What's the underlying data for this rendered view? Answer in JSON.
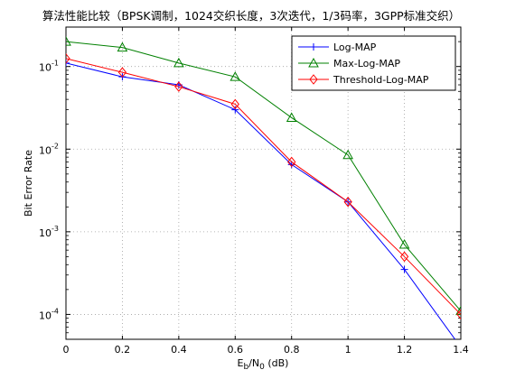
{
  "chart_data": {
    "type": "line",
    "title": "算法性能比较（BPSK调制，1024交织长度，3次迭代，1/3码率，3GPP标准交织）",
    "xlabel": {
      "main": "E",
      "sub1": "b",
      "mid": "/N",
      "sub2": "0",
      "tail": " (dB)"
    },
    "ylabel": "Bit Error Rate",
    "x_scale": "linear",
    "y_scale": "log",
    "xlim": [
      0,
      1.4
    ],
    "ylim": [
      5e-05,
      0.3
    ],
    "grid": true,
    "legend_position": "top-right",
    "x_ticks": [
      "0",
      "0.2",
      "0.4",
      "0.6",
      "0.8",
      "1",
      "1.2",
      "1.4"
    ],
    "y_ticks": [
      {
        "base": "10",
        "exp": "-4"
      },
      {
        "base": "10",
        "exp": "-3"
      },
      {
        "base": "10",
        "exp": "-2"
      },
      {
        "base": "10",
        "exp": "-1"
      }
    ],
    "x": [
      0,
      0.2,
      0.4,
      0.6,
      0.8,
      1.0,
      1.2,
      1.4
    ],
    "series": [
      {
        "name": "Log-MAP",
        "color": "#0000ff",
        "marker": "plus",
        "values": [
          0.11,
          0.075,
          0.06,
          0.03,
          0.0065,
          0.0023,
          0.00035,
          4e-05
        ]
      },
      {
        "name": "Max-Log-MAP",
        "color": "#008000",
        "marker": "triangle",
        "values": [
          0.2,
          0.17,
          0.11,
          0.075,
          0.024,
          0.0085,
          0.0007,
          0.00011
        ]
      },
      {
        "name": "Threshold-Log-MAP",
        "color": "#ff0000",
        "marker": "diamond",
        "values": [
          0.125,
          0.085,
          0.057,
          0.035,
          0.007,
          0.0023,
          0.0005,
          0.0001
        ]
      }
    ]
  }
}
